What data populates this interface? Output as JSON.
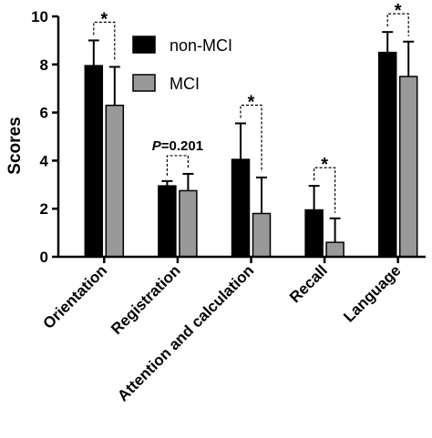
{
  "chart_data": {
    "type": "bar",
    "ylabel": "Scores",
    "ylim": [
      0,
      10
    ],
    "yticks": [
      0,
      2,
      4,
      6,
      8,
      10
    ],
    "categories": [
      "Orientation",
      "Registration",
      "Attention and calculation",
      "Recall",
      "Language"
    ],
    "series": [
      {
        "name": "non-MCI",
        "color": "#000000",
        "values": [
          7.95,
          2.95,
          4.05,
          1.95,
          8.5
        ],
        "errors": [
          1.05,
          0.2,
          1.5,
          1.0,
          0.85
        ]
      },
      {
        "name": "MCI",
        "color": "#999999",
        "values": [
          6.3,
          2.75,
          1.8,
          0.6,
          7.5
        ],
        "errors": [
          1.6,
          0.7,
          1.5,
          1.0,
          1.45
        ]
      }
    ],
    "annotations": [
      {
        "category": "Orientation",
        "label": "*"
      },
      {
        "category": "Registration",
        "label": "P=0.201",
        "label_prefix": "P",
        "label_suffix": "=0.201"
      },
      {
        "category": "Attention and calculation",
        "label": "*"
      },
      {
        "category": "Recall",
        "label": "*"
      },
      {
        "category": "Language",
        "label": "*"
      }
    ],
    "legend_position": "top-center"
  }
}
